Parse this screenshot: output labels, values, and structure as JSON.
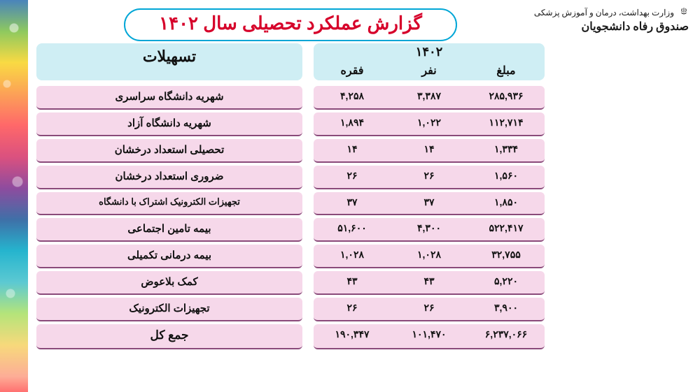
{
  "ministry": {
    "line1": "وزارت بهداشت، درمان و آموزش پزشکی",
    "line2": "صندوق رفاه دانشجویان"
  },
  "title": "گزارش عملکرد تحصیلی سال ۱۴۰۲",
  "headers": {
    "facilities": "تسهیلات",
    "year": "۱۴۰۲",
    "col_count": "فقره",
    "col_people": "نفر",
    "col_amount": "مبلغ"
  },
  "rows": [
    {
      "label": "شهریه دانشگاه سراسری",
      "count": "۴,۲۵۸",
      "people": "۳,۳۸۷",
      "amount": "۲۸۵,۹۳۶",
      "small": false
    },
    {
      "label": "شهریه دانشگاه آزاد",
      "count": "۱,۸۹۴",
      "people": "۱,۰۲۲",
      "amount": "۱۱۲,۷۱۴",
      "small": false
    },
    {
      "label": "تحصیلی استعداد درخشان",
      "count": "۱۴",
      "people": "۱۴",
      "amount": "۱,۳۳۴",
      "small": false
    },
    {
      "label": "ضروری استعداد درخشان",
      "count": "۲۶",
      "people": "۲۶",
      "amount": "۱,۵۶۰",
      "small": false
    },
    {
      "label": "تجهیزات الکترونیک اشتراک با دانشگاه",
      "count": "۳۷",
      "people": "۳۷",
      "amount": "۱,۸۵۰",
      "small": true
    },
    {
      "label": "بیمه تامین اجتماعی",
      "count": "۵۱,۶۰۰",
      "people": "۴,۳۰۰",
      "amount": "۵۲۲,۴۱۷",
      "small": false
    },
    {
      "label": "بیمه درمانی تکمیلی",
      "count": "۱,۰۲۸",
      "people": "۱,۰۲۸",
      "amount": "۳۲,۷۵۵",
      "small": false
    },
    {
      "label": "کمک بلاعوض",
      "count": "۴۳",
      "people": "۴۳",
      "amount": "۵,۲۲۰",
      "small": false
    },
    {
      "label": "تجهیزات الکترونیک",
      "count": "۲۶",
      "people": "۲۶",
      "amount": "۳,۹۰۰",
      "small": false
    }
  ],
  "total": {
    "label": "جمع کل",
    "count": "۱۹۰,۳۴۷",
    "people": "۱۰۱,۴۷۰",
    "amount": "۶,۲۳۷,۰۶۶"
  },
  "style": {
    "title_border": "#00a6d6",
    "title_text": "#d6002a",
    "header_bg": "#cfeef4",
    "row_bg": "#f6d8ea",
    "row_underline": "#8a4a7a",
    "page_bg": "#ffffff"
  }
}
